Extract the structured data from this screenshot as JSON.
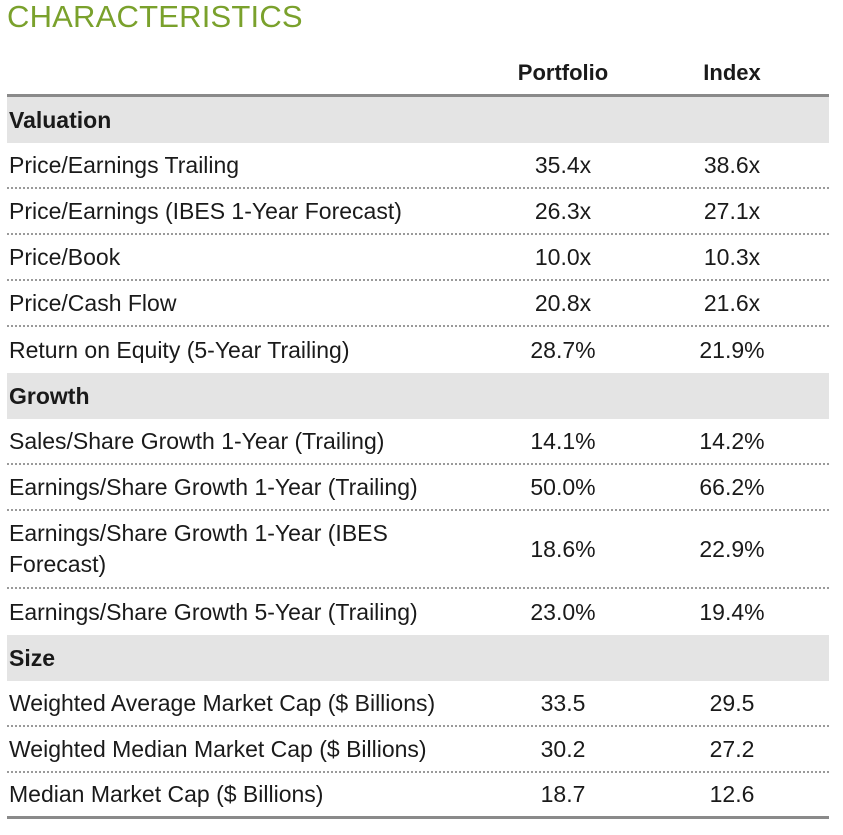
{
  "title": "CHARACTERISTICS",
  "columns": {
    "portfolio": "Portfolio",
    "index": "Index"
  },
  "sections": [
    {
      "name": "Valuation",
      "rows": [
        {
          "label": "Price/Earnings Trailing",
          "portfolio": "35.4x",
          "index": "38.6x"
        },
        {
          "label": "Price/Earnings (IBES 1-Year Forecast)",
          "portfolio": "26.3x",
          "index": "27.1x"
        },
        {
          "label": "Price/Book",
          "portfolio": "10.0x",
          "index": "10.3x"
        },
        {
          "label": "Price/Cash Flow",
          "portfolio": "20.8x",
          "index": "21.6x"
        },
        {
          "label": "Return on Equity (5-Year Trailing)",
          "portfolio": "28.7%",
          "index": "21.9%"
        }
      ]
    },
    {
      "name": "Growth",
      "rows": [
        {
          "label": "Sales/Share Growth 1-Year (Trailing)",
          "portfolio": "14.1%",
          "index": "14.2%"
        },
        {
          "label": "Earnings/Share Growth 1-Year (Trailing)",
          "portfolio": "50.0%",
          "index": "66.2%"
        },
        {
          "label": "Earnings/Share Growth 1-Year (IBES Forecast)",
          "portfolio": "18.6%",
          "index": "22.9%"
        },
        {
          "label": "Earnings/Share Growth 5-Year (Trailing)",
          "portfolio": "23.0%",
          "index": "19.4%"
        }
      ]
    },
    {
      "name": "Size",
      "rows": [
        {
          "label": "Weighted Average Market Cap ($ Billions)",
          "portfolio": "33.5",
          "index": "29.5"
        },
        {
          "label": "Weighted Median Market Cap ($ Billions)",
          "portfolio": "30.2",
          "index": "27.2"
        },
        {
          "label": "Median Market Cap ($ Billions)",
          "portfolio": "18.7",
          "index": "12.6"
        }
      ]
    }
  ],
  "colors": {
    "title": "#7aa12c",
    "section_bg": "#e4e4e4",
    "rule": "#8a8a8a"
  }
}
